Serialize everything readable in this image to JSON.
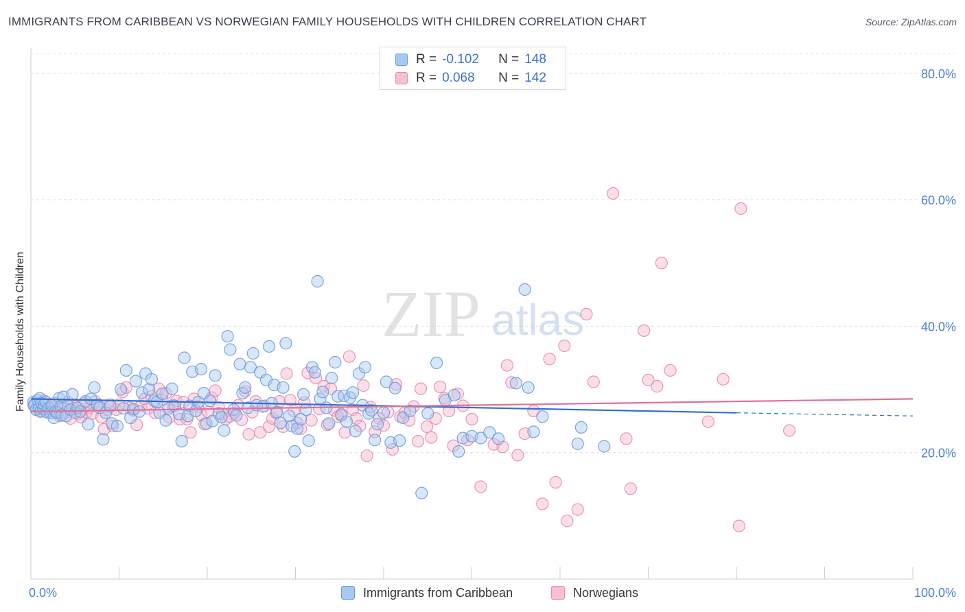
{
  "title": "IMMIGRANTS FROM CARIBBEAN VS NORWEGIAN FAMILY HOUSEHOLDS WITH CHILDREN CORRELATION CHART",
  "source": "Source: ZipAtlas.com",
  "watermark": {
    "zip": "ZIP",
    "atlas": "atlas"
  },
  "legend": {
    "rows": [
      {
        "r_label": "R =",
        "r_value": "-0.102",
        "n_label": "N =",
        "n_value": "148"
      },
      {
        "r_label": "R =",
        "r_value": "0.068",
        "n_label": "N =",
        "n_value": "142"
      }
    ]
  },
  "bottom_legend": {
    "series1": "Immigrants from Caribbean",
    "series2": "Norwegians"
  },
  "colors": {
    "blue": "#2e6fd0",
    "pink": "#e0709a",
    "blue_fill": "#a9c7f0",
    "pink_fill": "#f6b8cc",
    "axis_text": "#4a7fd0"
  },
  "chart_data": {
    "type": "scatter",
    "xlabel": "",
    "ylabel": "Family Households with Children",
    "xlim": [
      0,
      100
    ],
    "ylim": [
      0,
      84
    ],
    "x_tick_labels": [
      "0.0%",
      "100.0%"
    ],
    "y_ticks": [
      20,
      40,
      60,
      80
    ],
    "y_tick_labels": [
      "20.0%",
      "40.0%",
      "60.0%",
      "80.0%"
    ],
    "series": [
      {
        "name": "Immigrants from Caribbean",
        "color": "#2e6fd0",
        "trend": {
          "x": [
            0,
            80
          ],
          "y": [
            28.5,
            26.3
          ],
          "dashed_to": [
            100,
            25.8
          ]
        },
        "points": [
          [
            0.3,
            28
          ],
          [
            0.4,
            27.5
          ],
          [
            0.6,
            26.8
          ],
          [
            0.8,
            28.3
          ],
          [
            0.9,
            27
          ],
          [
            1,
            28.6
          ],
          [
            1.1,
            26.5
          ],
          [
            1.2,
            27.8
          ],
          [
            1.4,
            26.9
          ],
          [
            1.5,
            27.6
          ],
          [
            1.7,
            28
          ],
          [
            1.8,
            26.4
          ],
          [
            2,
            27
          ],
          [
            2.2,
            26.3
          ],
          [
            2.4,
            27.5
          ],
          [
            2.6,
            25.5
          ],
          [
            2.8,
            26.5
          ],
          [
            3,
            26.3
          ],
          [
            3.2,
            28.6
          ],
          [
            3.4,
            27.3
          ],
          [
            3.5,
            26
          ],
          [
            3.7,
            28.8
          ],
          [
            4,
            25.8
          ],
          [
            4.2,
            27.4
          ],
          [
            4.5,
            26.8
          ],
          [
            4.7,
            29.2
          ],
          [
            5,
            26.3
          ],
          [
            5.3,
            27.1
          ],
          [
            5.6,
            26.5
          ],
          [
            6.2,
            28.1
          ],
          [
            6.5,
            24.5
          ],
          [
            6.8,
            28.5
          ],
          [
            7.2,
            30.3
          ],
          [
            7.5,
            27.5
          ],
          [
            7.8,
            27.1
          ],
          [
            8.2,
            22.1
          ],
          [
            8.5,
            26.3
          ],
          [
            9,
            27.3
          ],
          [
            9.2,
            24.6
          ],
          [
            9.8,
            24.2
          ],
          [
            10.2,
            30
          ],
          [
            10.5,
            27
          ],
          [
            10.8,
            33
          ],
          [
            11.3,
            25.5
          ],
          [
            11.6,
            26.9
          ],
          [
            11.9,
            31.3
          ],
          [
            12.3,
            26.5
          ],
          [
            12.6,
            29.5
          ],
          [
            13,
            32.5
          ],
          [
            13.4,
            30
          ],
          [
            13.7,
            31.6
          ],
          [
            14,
            28.2
          ],
          [
            14.3,
            28
          ],
          [
            14.6,
            26.3
          ],
          [
            14.9,
            29.3
          ],
          [
            15.3,
            25.1
          ],
          [
            15.6,
            27
          ],
          [
            16,
            30.1
          ],
          [
            16.3,
            27.4
          ],
          [
            16.8,
            26.1
          ],
          [
            17.1,
            21.8
          ],
          [
            17.4,
            35
          ],
          [
            17.8,
            25.8
          ],
          [
            18,
            27.4
          ],
          [
            18.3,
            32.8
          ],
          [
            18.7,
            26.6
          ],
          [
            19,
            28
          ],
          [
            19.3,
            33.2
          ],
          [
            19.6,
            29.4
          ],
          [
            19.9,
            24.6
          ],
          [
            20.3,
            28.2
          ],
          [
            20.6,
            25
          ],
          [
            20.9,
            32.2
          ],
          [
            21.3,
            26.2
          ],
          [
            21.6,
            25.6
          ],
          [
            21.9,
            23.5
          ],
          [
            22.3,
            38.4
          ],
          [
            22.6,
            36.3
          ],
          [
            23,
            26.8
          ],
          [
            23.3,
            25.9
          ],
          [
            23.7,
            34
          ],
          [
            24,
            29.4
          ],
          [
            24.3,
            30.3
          ],
          [
            24.6,
            27.1
          ],
          [
            24.9,
            33.5
          ],
          [
            25.2,
            35.7
          ],
          [
            25.6,
            27.5
          ],
          [
            26,
            32.7
          ],
          [
            26.3,
            27.3
          ],
          [
            26.7,
            31.5
          ],
          [
            27,
            36.8
          ],
          [
            27.3,
            27.8
          ],
          [
            27.6,
            30.7
          ],
          [
            27.9,
            26.4
          ],
          [
            28.3,
            24.7
          ],
          [
            28.6,
            30.3
          ],
          [
            28.9,
            37.3
          ],
          [
            29.3,
            25.8
          ],
          [
            29.6,
            24.2
          ],
          [
            29.9,
            20.2
          ],
          [
            30.2,
            23.8
          ],
          [
            30.6,
            25.3
          ],
          [
            30.9,
            29.2
          ],
          [
            31.2,
            26.8
          ],
          [
            31.5,
            21.9
          ],
          [
            31.9,
            33.5
          ],
          [
            32.2,
            32.7
          ],
          [
            32.5,
            47.1
          ],
          [
            32.8,
            28.5
          ],
          [
            33.1,
            29.6
          ],
          [
            33.5,
            27.1
          ],
          [
            33.8,
            24.6
          ],
          [
            34.1,
            31.8
          ],
          [
            34.5,
            34.3
          ],
          [
            34.8,
            28.9
          ],
          [
            35.2,
            25.9
          ],
          [
            35.5,
            29
          ],
          [
            35.8,
            24.9
          ],
          [
            36.2,
            28.7
          ],
          [
            36.5,
            29.5
          ],
          [
            36.8,
            23.4
          ],
          [
            37.2,
            32.5
          ],
          [
            37.6,
            27.5
          ],
          [
            37.9,
            33.5
          ],
          [
            38.3,
            26.2
          ],
          [
            38.6,
            26.7
          ],
          [
            39,
            22
          ],
          [
            39.3,
            24.5
          ],
          [
            40,
            26.3
          ],
          [
            40.3,
            31.2
          ],
          [
            40.8,
            21.6
          ],
          [
            41.3,
            30.2
          ],
          [
            41.8,
            21.9
          ],
          [
            42.2,
            25.5
          ],
          [
            43,
            26.6
          ],
          [
            44.3,
            13.6
          ],
          [
            45,
            26.2
          ],
          [
            46,
            34.2
          ],
          [
            47,
            28.3
          ],
          [
            48,
            29.1
          ],
          [
            48.5,
            20.2
          ],
          [
            49,
            22.3
          ],
          [
            50,
            22.6
          ],
          [
            51,
            22.3
          ],
          [
            52,
            23.2
          ],
          [
            53,
            22.2
          ],
          [
            55,
            31
          ],
          [
            56,
            45.8
          ],
          [
            56.4,
            30.3
          ],
          [
            57,
            23.3
          ],
          [
            58,
            25.7
          ],
          [
            62,
            21.4
          ],
          [
            62.4,
            24
          ],
          [
            65,
            21
          ]
        ]
      },
      {
        "name": "Norwegians",
        "color": "#e0709a",
        "trend": {
          "x": [
            0,
            100
          ],
          "y": [
            26.5,
            28.5
          ]
        },
        "points": [
          [
            0.3,
            27.5
          ],
          [
            0.6,
            26.8
          ],
          [
            0.9,
            27.9
          ],
          [
            1.2,
            26.6
          ],
          [
            1.5,
            28.2
          ],
          [
            1.8,
            26.9
          ],
          [
            2.1,
            27.2
          ],
          [
            2.4,
            26.3
          ],
          [
            2.7,
            27.8
          ],
          [
            3,
            26.5
          ],
          [
            3.3,
            25.8
          ],
          [
            3.6,
            27.5
          ],
          [
            3.9,
            26.3
          ],
          [
            4.2,
            28
          ],
          [
            4.5,
            25.4
          ],
          [
            4.8,
            26.9
          ],
          [
            5.1,
            27.3
          ],
          [
            5.4,
            26.1
          ],
          [
            5.7,
            25.6
          ],
          [
            6,
            27.8
          ],
          [
            6.3,
            26.4
          ],
          [
            6.6,
            27.1
          ],
          [
            7,
            26.2
          ],
          [
            7.3,
            28.1
          ],
          [
            7.6,
            27.6
          ],
          [
            8,
            25.6
          ],
          [
            8.3,
            23.7
          ],
          [
            8.6,
            26.8
          ],
          [
            9,
            27.6
          ],
          [
            9.3,
            24.2
          ],
          [
            9.7,
            26.8
          ],
          [
            10,
            27.6
          ],
          [
            10.4,
            29.6
          ],
          [
            10.8,
            30.3
          ],
          [
            11.2,
            27.1
          ],
          [
            11.6,
            26.7
          ],
          [
            12,
            24.4
          ],
          [
            12.5,
            27.4
          ],
          [
            12.9,
            28.5
          ],
          [
            13.3,
            27
          ],
          [
            13.7,
            28.9
          ],
          [
            14.1,
            26.3
          ],
          [
            14.5,
            30.1
          ],
          [
            14.9,
            28.3
          ],
          [
            15.3,
            29.4
          ],
          [
            15.7,
            25.6
          ],
          [
            16.1,
            27.5
          ],
          [
            16.5,
            28.2
          ],
          [
            16.9,
            25.3
          ],
          [
            17.3,
            28
          ],
          [
            17.7,
            25.3
          ],
          [
            18.1,
            23.2
          ],
          [
            18.5,
            28.5
          ],
          [
            18.9,
            27.3
          ],
          [
            19.3,
            26
          ],
          [
            19.7,
            24.5
          ],
          [
            20.1,
            26.4
          ],
          [
            20.5,
            28.7
          ],
          [
            20.9,
            29.8
          ],
          [
            21.3,
            27.2
          ],
          [
            21.7,
            26.1
          ],
          [
            22.1,
            25.3
          ],
          [
            22.5,
            25.7
          ],
          [
            23.1,
            26.3
          ],
          [
            23.5,
            27.5
          ],
          [
            23.9,
            25.2
          ],
          [
            24.3,
            29.7
          ],
          [
            24.7,
            22.9
          ],
          [
            25.1,
            26.4
          ],
          [
            25.5,
            28.1
          ],
          [
            26,
            23.2
          ],
          [
            26.5,
            27.4
          ],
          [
            27,
            24.1
          ],
          [
            27.4,
            25.4
          ],
          [
            27.8,
            26.3
          ],
          [
            28.2,
            28.1
          ],
          [
            28.6,
            24.1
          ],
          [
            29,
            32.5
          ],
          [
            29.4,
            28.3
          ],
          [
            29.8,
            26.6
          ],
          [
            30.2,
            24.7
          ],
          [
            30.6,
            23.8
          ],
          [
            31,
            27.9
          ],
          [
            31.4,
            32.6
          ],
          [
            31.8,
            25.1
          ],
          [
            32.3,
            31.8
          ],
          [
            32.7,
            26.9
          ],
          [
            33.2,
            30.5
          ],
          [
            33.6,
            24.4
          ],
          [
            34,
            30.1
          ],
          [
            34.4,
            26.7
          ],
          [
            34.8,
            25.7
          ],
          [
            35.2,
            26.1
          ],
          [
            35.6,
            23.2
          ],
          [
            36.1,
            35.2
          ],
          [
            36.5,
            26.8
          ],
          [
            36.9,
            25.4
          ],
          [
            37.3,
            24.2
          ],
          [
            37.7,
            30.6
          ],
          [
            38.1,
            19.5
          ],
          [
            38.5,
            27.2
          ],
          [
            39,
            23.3
          ],
          [
            39.5,
            25.4
          ],
          [
            40,
            24.3
          ],
          [
            40.5,
            26.4
          ],
          [
            41,
            20.5
          ],
          [
            41.4,
            30.8
          ],
          [
            41.9,
            25.7
          ],
          [
            42.4,
            26.3
          ],
          [
            42.9,
            25.1
          ],
          [
            43.4,
            27.3
          ],
          [
            43.9,
            21.8
          ],
          [
            44.2,
            30.1
          ],
          [
            44.9,
            24.1
          ],
          [
            45.4,
            22.4
          ],
          [
            45.9,
            25.4
          ],
          [
            46.4,
            30.4
          ],
          [
            46.9,
            28.6
          ],
          [
            47.4,
            26.6
          ],
          [
            47.9,
            21.1
          ],
          [
            48.4,
            29.3
          ],
          [
            49,
            27.4
          ],
          [
            49.5,
            22
          ],
          [
            50,
            25.3
          ],
          [
            51,
            14.6
          ],
          [
            52.5,
            21.3
          ],
          [
            53.5,
            20.9
          ],
          [
            54,
            33.8
          ],
          [
            54.5,
            31.1
          ],
          [
            55.2,
            19.6
          ],
          [
            56,
            23
          ],
          [
            57,
            26.6
          ],
          [
            58,
            11.9
          ],
          [
            58.8,
            34.8
          ],
          [
            59.5,
            15.3
          ],
          [
            60.5,
            36.9
          ],
          [
            60.8,
            9.2
          ],
          [
            62,
            11
          ],
          [
            63,
            41.9
          ],
          [
            63.8,
            31.2
          ],
          [
            66,
            61
          ],
          [
            67.5,
            22.2
          ],
          [
            68,
            14.3
          ],
          [
            69.5,
            39.3
          ],
          [
            70,
            31.5
          ],
          [
            71,
            30.5
          ],
          [
            71.5,
            50
          ],
          [
            72.5,
            33
          ],
          [
            76.8,
            24.9
          ],
          [
            78.5,
            31.6
          ],
          [
            80.3,
            8.4
          ],
          [
            80.5,
            58.6
          ],
          [
            86,
            23.5
          ]
        ]
      }
    ]
  }
}
